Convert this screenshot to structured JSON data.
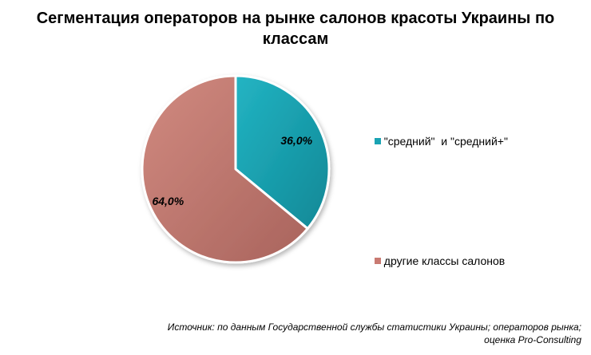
{
  "chart_data": {
    "type": "pie",
    "title_line1": "Сегментация операторов на рынке салонов красоты Украины по",
    "title_line2": "классам",
    "categories": [
      "\"средний\"  и \"средний+\"",
      "другие классы салонов"
    ],
    "values": [
      36.0,
      64.0
    ],
    "data_labels": [
      "36,0%",
      "64,0%"
    ],
    "colors": [
      "#1aa3b3",
      "#c97a72"
    ],
    "legend_placement": "right"
  },
  "source": {
    "line1": "Источник: по данным Государственной службы статистики Украины; операторов рынка;",
    "line2": "оценка Pro-Consulting"
  }
}
